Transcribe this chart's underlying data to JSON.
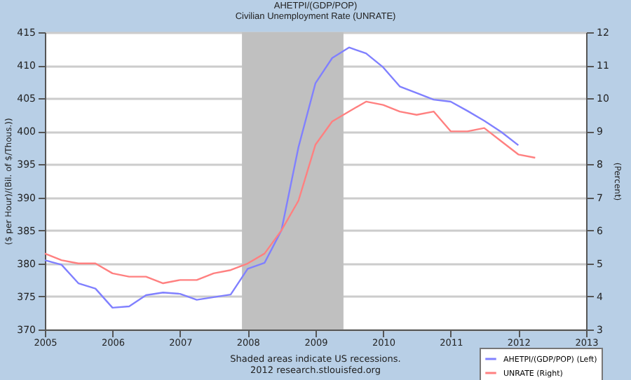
{
  "chart_data": {
    "type": "line",
    "title": "AHETPI/(GDP/POP)",
    "subtitle": "Civilian Unemployment Rate (UNRATE)",
    "ylabel": "($ per Hour)/(Bil. of $/Thous.))",
    "y2label": "(Percent)",
    "x": [
      "2005-01",
      "2005-04",
      "2005-07",
      "2005-10",
      "2006-01",
      "2006-04",
      "2006-07",
      "2006-10",
      "2007-01",
      "2007-04",
      "2007-07",
      "2007-10",
      "2008-01",
      "2008-04",
      "2008-07",
      "2008-10",
      "2009-01",
      "2009-04",
      "2009-07",
      "2009-10",
      "2010-01",
      "2010-04",
      "2010-07",
      "2010-10",
      "2011-01",
      "2011-04",
      "2011-07",
      "2011-10",
      "2012-01",
      "2012-04"
    ],
    "series": [
      {
        "name": "AHETPI/(GDP/POP) (Left)",
        "color": "#8080ff",
        "values": [
          380.5,
          379.8,
          377.0,
          376.2,
          373.3,
          373.5,
          375.2,
          375.6,
          375.4,
          374.5,
          374.9,
          375.3,
          379.2,
          380.1,
          385.0,
          397.6,
          407.3,
          411.1,
          412.7,
          411.8,
          409.7,
          406.8,
          405.8,
          404.8,
          404.5,
          403.1,
          401.6,
          399.9,
          397.9,
          null
        ]
      },
      {
        "name": "UNRATE (Right)",
        "color": "#ff8080",
        "axis": "y2",
        "values": [
          5.3,
          5.1,
          5.0,
          5.0,
          4.7,
          4.6,
          4.6,
          4.4,
          4.5,
          4.5,
          4.7,
          4.8,
          5.0,
          5.3,
          6.0,
          6.9,
          8.6,
          9.3,
          9.6,
          9.9,
          9.8,
          9.6,
          9.5,
          9.6,
          9.0,
          9.0,
          9.1,
          8.7,
          8.3,
          8.2
        ]
      }
    ],
    "xlim": [
      "2005",
      "2013"
    ],
    "xticks": [
      "2005",
      "2006",
      "2007",
      "2008",
      "2009",
      "2010",
      "2011",
      "2012",
      "2013"
    ],
    "ylim": [
      370,
      415
    ],
    "yticks": [
      370,
      375,
      380,
      385,
      390,
      395,
      400,
      405,
      410,
      415
    ],
    "y2lim": [
      3,
      12
    ],
    "y2ticks": [
      3,
      4,
      5,
      6,
      7,
      8,
      9,
      10,
      11,
      12
    ],
    "bands": [
      {
        "axis": "x",
        "from": "2007-12",
        "to": "2009-06",
        "color": "#c0c0c0"
      }
    ],
    "grid": "y",
    "legend": "bottom right",
    "annotations": [
      "Shaded areas indicate US recessions.",
      "2012 research.stlouisfed.org"
    ]
  }
}
